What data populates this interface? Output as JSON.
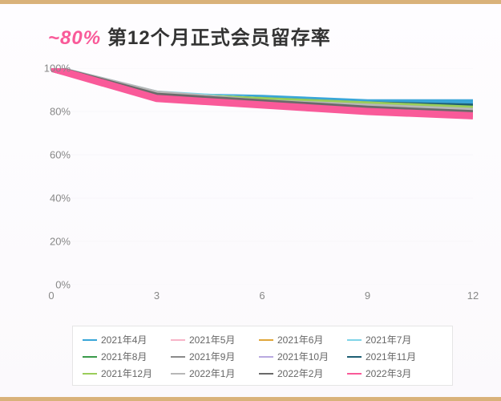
{
  "title": {
    "highlight": "~80%",
    "rest": "第12个月正式会员留存率",
    "highlight_color": "#f95a99",
    "text_color": "#333333",
    "fontsize": 24
  },
  "chart": {
    "type": "line",
    "background_color": "#fcfcfe",
    "grid_color": "#e8e8ee",
    "axis_label_color": "#888888",
    "axis_label_fontsize": 13,
    "xlim": [
      0,
      12
    ],
    "ylim": [
      0,
      100
    ],
    "xticks": [
      0,
      3,
      6,
      9,
      12
    ],
    "yticks": [
      0,
      20,
      40,
      60,
      80,
      100
    ],
    "ytick_labels": [
      "0%",
      "20%",
      "40%",
      "60%",
      "80%",
      "100%"
    ],
    "xtick_labels": [
      "0",
      "3",
      "6",
      "9",
      "12"
    ],
    "line_width": 1.5,
    "series": [
      {
        "label": "2021年4月",
        "color": "#39a6d8",
        "x": [
          0,
          3,
          6,
          9,
          12
        ],
        "y": [
          100,
          87,
          86,
          84,
          84
        ]
      },
      {
        "label": "2021年5月",
        "color": "#f7b4c8",
        "x": [
          0,
          3,
          6,
          9,
          12
        ],
        "y": [
          100,
          87,
          84,
          81,
          78
        ]
      },
      {
        "label": "2021年6月",
        "color": "#e0a63a",
        "x": [
          0,
          3,
          6,
          9,
          12
        ],
        "y": [
          100,
          87,
          85,
          82,
          80
        ]
      },
      {
        "label": "2021年7月",
        "color": "#7fd4e8",
        "x": [
          0,
          3,
          6,
          9,
          12
        ],
        "y": [
          100,
          88,
          85,
          83,
          82
        ]
      },
      {
        "label": "2021年8月",
        "color": "#3a9a4a",
        "x": [
          0,
          3,
          6,
          9,
          12
        ],
        "y": [
          100,
          87,
          85,
          82,
          80
        ]
      },
      {
        "label": "2021年9月",
        "color": "#8a8a8a",
        "x": [
          0,
          3,
          6,
          9,
          12
        ],
        "y": [
          100,
          87,
          84,
          82,
          80
        ]
      },
      {
        "label": "2021年10月",
        "color": "#b9a9e0",
        "x": [
          0,
          3,
          6,
          9,
          12
        ],
        "y": [
          100,
          87,
          85,
          82,
          81
        ]
      },
      {
        "label": "2021年11月",
        "color": "#1d5e73",
        "x": [
          0,
          3,
          6,
          9,
          12
        ],
        "y": [
          100,
          87,
          85,
          83,
          82
        ]
      },
      {
        "label": "2021年12月",
        "color": "#9acd5a",
        "x": [
          0,
          3,
          6,
          9,
          12
        ],
        "y": [
          100,
          87,
          85,
          83,
          81
        ]
      },
      {
        "label": "2022年1月",
        "color": "#b7b7b7",
        "x": [
          0,
          3,
          6,
          9,
          12
        ],
        "y": [
          100,
          88,
          84,
          82,
          80
        ]
      },
      {
        "label": "2022年2月",
        "color": "#6a6a6a",
        "x": [
          0,
          3,
          6,
          9,
          12
        ],
        "y": [
          100,
          87,
          84,
          81,
          79
        ]
      },
      {
        "label": "2022年3月",
        "color": "#f95a99",
        "x": [
          0,
          3,
          6,
          9,
          12
        ],
        "y": [
          100,
          86,
          83,
          80,
          78
        ]
      }
    ]
  },
  "legend": {
    "border_color": "#e5e5e5",
    "background": "#ffffff",
    "fontsize": 12,
    "text_color": "#666666"
  }
}
